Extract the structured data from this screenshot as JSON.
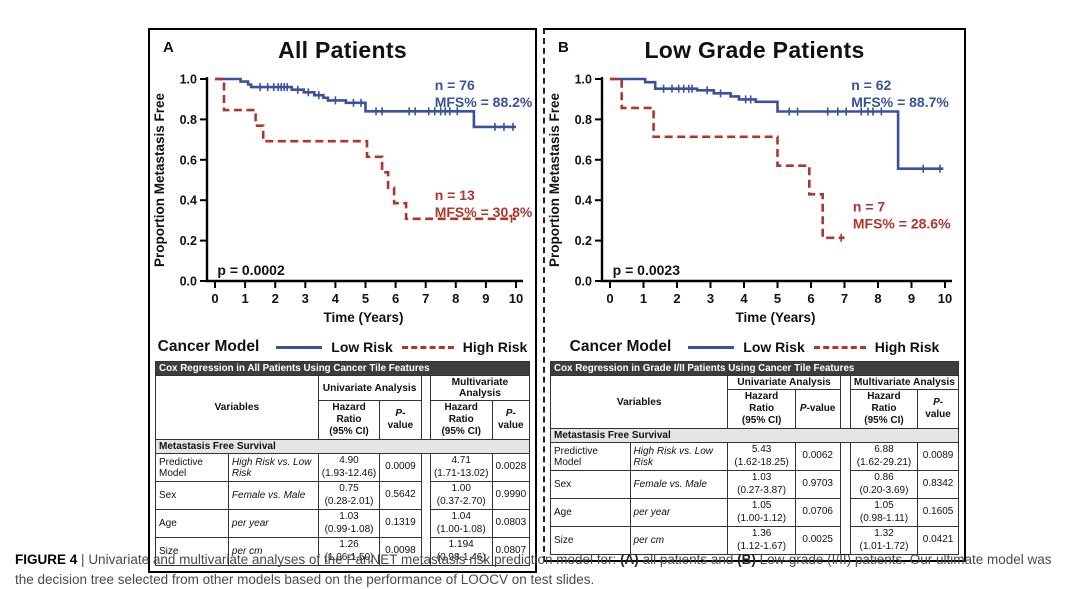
{
  "axes": {
    "ylabel": "Proportion Metastasis Free",
    "xlabel": "Time (Years)",
    "y_ticks": [
      "1.0",
      "0.8",
      "0.6",
      "0.4",
      "0.2",
      "0.0"
    ],
    "x_ticks": [
      "0",
      "1",
      "2",
      "3",
      "4",
      "5",
      "6",
      "7",
      "8",
      "9",
      "10"
    ]
  },
  "legend": {
    "title": "Cancer Model",
    "low": "Low Risk",
    "high": "High Risk"
  },
  "colors": {
    "low_risk": "#3a529c",
    "high_risk": "#b0352c",
    "table_header_bg": "#3d3d3d",
    "section_bg": "#e5e5e5"
  },
  "table_headers": {
    "variables": "Variables",
    "univariate": "Univariate Analysis",
    "multivariate": "Multivariate Analysis",
    "hr": "Hazard Ratio",
    "ci": "(95% CI)",
    "p_italic": "P",
    "p_rest": "-value"
  },
  "chart_data": [
    {
      "type": "line",
      "kind": "kaplan-meier-step",
      "label": "A",
      "title": "All Patients",
      "xlabel": "Time (Years)",
      "ylabel": "Proportion Metastasis Free",
      "xlim": [
        0,
        10
      ],
      "ylim": [
        0.0,
        1.0
      ],
      "p_value": "p = 0.0002",
      "series": [
        {
          "name": "Low Risk",
          "style": "solid",
          "color_key": "low_risk",
          "n_label": "n = 76",
          "mfs_label": "MFS% = 88.2%",
          "ann_x": 7.3,
          "ann_y": 0.945,
          "x_end": 10,
          "steps": [
            [
              0,
              1.0
            ],
            [
              0.85,
              0.987
            ],
            [
              1.1,
              0.973
            ],
            [
              1.2,
              0.96
            ],
            [
              2.55,
              0.947
            ],
            [
              2.95,
              0.934
            ],
            [
              3.3,
              0.92
            ],
            [
              3.6,
              0.907
            ],
            [
              3.75,
              0.894
            ],
            [
              4.35,
              0.882
            ],
            [
              5.0,
              0.84
            ],
            [
              8.6,
              0.763
            ]
          ],
          "censors": [
            [
              1.5,
              0.96
            ],
            [
              1.75,
              0.96
            ],
            [
              1.95,
              0.96
            ],
            [
              2.1,
              0.96
            ],
            [
              2.2,
              0.96
            ],
            [
              2.3,
              0.96
            ],
            [
              2.4,
              0.96
            ],
            [
              2.75,
              0.947
            ],
            [
              3.1,
              0.934
            ],
            [
              3.45,
              0.92
            ],
            [
              4.0,
              0.894
            ],
            [
              4.6,
              0.882
            ],
            [
              4.85,
              0.882
            ],
            [
              5.35,
              0.84
            ],
            [
              5.55,
              0.84
            ],
            [
              6.45,
              0.84
            ],
            [
              6.65,
              0.84
            ],
            [
              7.1,
              0.84
            ],
            [
              7.3,
              0.84
            ],
            [
              7.5,
              0.84
            ],
            [
              7.65,
              0.84
            ],
            [
              7.8,
              0.84
            ],
            [
              8.05,
              0.84
            ],
            [
              9.3,
              0.763
            ],
            [
              9.6,
              0.763
            ],
            [
              9.9,
              0.763
            ]
          ]
        },
        {
          "name": "High Risk",
          "style": "dashed",
          "color_key": "high_risk",
          "n_label": "n = 13",
          "mfs_label": "MFS% = 30.8%",
          "ann_x": 7.3,
          "ann_y": 0.4,
          "x_end": 10,
          "steps": [
            [
              0,
              1.0
            ],
            [
              0.3,
              0.846
            ],
            [
              1.35,
              0.769
            ],
            [
              1.6,
              0.692
            ],
            [
              5.05,
              0.615
            ],
            [
              5.55,
              0.538
            ],
            [
              5.75,
              0.462
            ],
            [
              5.95,
              0.385
            ],
            [
              6.35,
              0.308
            ]
          ],
          "censors": [
            [
              9.85,
              0.308
            ]
          ]
        }
      ],
      "table": {
        "title": "Cox Regression in All Patients Using Cancer Tile Features",
        "section": "Metastasis Free Survival",
        "rows": [
          {
            "variable": "Predictive Model",
            "comparison": "High Risk vs. Low Risk",
            "uni_hr": "4.90",
            "uni_ci": "(1.93-12.46)",
            "uni_p": "0.0009",
            "multi_hr": "4.71",
            "multi_ci": "(1.71-13.02)",
            "multi_p": "0.0028"
          },
          {
            "variable": "Sex",
            "comparison": "Female vs. Male",
            "uni_hr": "0.75",
            "uni_ci": "(0.28-2.01)",
            "uni_p": "0.5642",
            "multi_hr": "1.00",
            "multi_ci": "(0.37-2.70)",
            "multi_p": "0.9990"
          },
          {
            "variable": "Age",
            "comparison": "per year",
            "uni_hr": "1.03",
            "uni_ci": "(0.99-1.08)",
            "uni_p": "0.1319",
            "multi_hr": "1.04",
            "multi_ci": "(1.00-1.08)",
            "multi_p": "0.0803"
          },
          {
            "variable": "Size",
            "comparison": "per cm",
            "uni_hr": "1.26",
            "uni_ci": "(1.06-1.50)",
            "uni_p": "0.0098",
            "multi_hr": "1.194",
            "multi_ci": "(0.98-1.46)",
            "multi_p": "0.0807"
          }
        ]
      }
    },
    {
      "type": "line",
      "kind": "kaplan-meier-step",
      "label": "B",
      "title": "Low Grade Patients",
      "xlabel": "Time (Years)",
      "ylabel": "Proportion Metastasis Free",
      "xlim": [
        0,
        10
      ],
      "ylim": [
        0.0,
        1.0
      ],
      "p_value": "p = 0.0023",
      "series": [
        {
          "name": "Low Risk",
          "style": "solid",
          "color_key": "low_risk",
          "n_label": "n = 62",
          "mfs_label": "MFS% = 88.7%",
          "ann_x": 7.2,
          "ann_y": 0.945,
          "x_end": 9.95,
          "steps": [
            [
              0,
              1.0
            ],
            [
              1.05,
              0.984
            ],
            [
              1.35,
              0.952
            ],
            [
              2.6,
              0.944
            ],
            [
              3.1,
              0.929
            ],
            [
              3.6,
              0.914
            ],
            [
              3.85,
              0.899
            ],
            [
              4.35,
              0.887
            ],
            [
              5.0,
              0.839
            ],
            [
              8.6,
              0.556
            ]
          ],
          "censors": [
            [
              1.6,
              0.952
            ],
            [
              1.85,
              0.952
            ],
            [
              2.05,
              0.952
            ],
            [
              2.2,
              0.952
            ],
            [
              2.35,
              0.952
            ],
            [
              2.45,
              0.952
            ],
            [
              2.9,
              0.944
            ],
            [
              3.3,
              0.929
            ],
            [
              4.05,
              0.899
            ],
            [
              4.2,
              0.899
            ],
            [
              5.35,
              0.839
            ],
            [
              5.6,
              0.839
            ],
            [
              6.5,
              0.839
            ],
            [
              6.8,
              0.839
            ],
            [
              7.05,
              0.839
            ],
            [
              7.5,
              0.839
            ],
            [
              7.7,
              0.839
            ],
            [
              7.85,
              0.839
            ],
            [
              8.1,
              0.839
            ],
            [
              9.35,
              0.556
            ],
            [
              9.85,
              0.556
            ]
          ]
        },
        {
          "name": "High Risk",
          "style": "dashed",
          "color_key": "high_risk",
          "n_label": "n = 7",
          "mfs_label": "MFS% = 28.6%",
          "ann_x": 7.25,
          "ann_y": 0.345,
          "x_end": 7.0,
          "steps": [
            [
              0,
              1.0
            ],
            [
              0.35,
              0.857
            ],
            [
              1.3,
              0.714
            ],
            [
              5.0,
              0.571
            ],
            [
              5.95,
              0.429
            ],
            [
              6.35,
              0.214
            ]
          ],
          "censors": [
            [
              6.9,
              0.214
            ]
          ]
        }
      ],
      "table": {
        "title": "Cox Regression in Grade I/II Patients Using Cancer Tile Features",
        "section": "Metastasis Free Survival",
        "rows": [
          {
            "variable": "Predictive Model",
            "comparison": "High Risk vs. Low Risk",
            "uni_hr": "5.43",
            "uni_ci": "(1.62-18.25)",
            "uni_p": "0.0062",
            "multi_hr": "6.88",
            "multi_ci": "(1.62-29.21)",
            "multi_p": "0.0089"
          },
          {
            "variable": "Sex",
            "comparison": "Female vs. Male",
            "uni_hr": "1.03",
            "uni_ci": "(0.27-3.87)",
            "uni_p": "0.9703",
            "multi_hr": "0.86",
            "multi_ci": "(0.20-3.69)",
            "multi_p": "0.8342"
          },
          {
            "variable": "Age",
            "comparison": "per year",
            "uni_hr": "1.05",
            "uni_ci": "(1.00-1.12)",
            "uni_p": "0.0706",
            "multi_hr": "1.05",
            "multi_ci": "(0.98-1.11)",
            "multi_p": "0.1605"
          },
          {
            "variable": "Size",
            "comparison": "per cm",
            "uni_hr": "1.36",
            "uni_ci": "(1.12-1.67)",
            "uni_p": "0.0025",
            "multi_hr": "1.32",
            "multi_ci": "(1.01-1.72)",
            "multi_p": "0.0421"
          }
        ]
      }
    }
  ],
  "caption": {
    "label": "FIGURE 4",
    "sep": "|",
    "part1": "Univariate and multivariate analyses of the PanNET metastasis risk prediction model for: ",
    "bold_a": "(A)",
    "part2": " all patients and ",
    "bold_b": "(B)",
    "part3": " Low-grade (I/II) patients. Our ultimate model was the decision tree selected from other models based on the performance of LOOCV on test slides."
  }
}
